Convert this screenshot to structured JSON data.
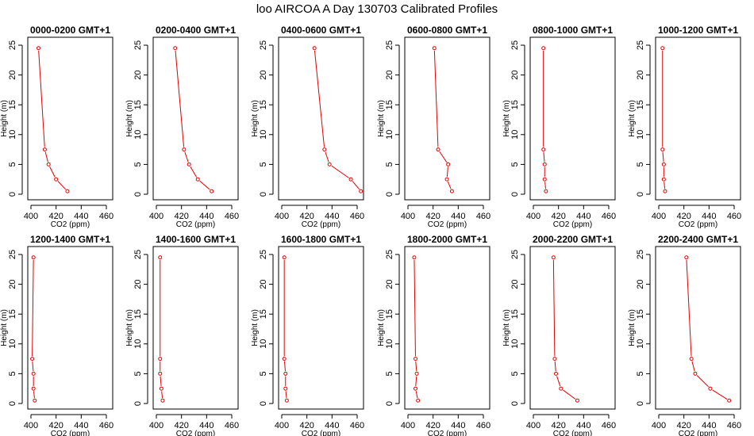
{
  "chart_data": {
    "type": "line",
    "title": "loo AIRCOA A  Day 130703  Calibrated Profiles",
    "xlabel": "CO2 (ppm)",
    "ylabel": "Height (m)",
    "xlim": [
      400,
      460
    ],
    "ylim": [
      0,
      25
    ],
    "xticks": [
      400,
      420,
      440,
      460
    ],
    "yticks": [
      0,
      5,
      10,
      15,
      20,
      25
    ],
    "series_color": "#e00000",
    "heights": [
      0.5,
      2.5,
      5,
      7.5,
      24.5
    ],
    "panels": [
      {
        "title": "0000-0200 GMT+1",
        "co2": [
          429,
          420,
          414,
          411,
          406
        ]
      },
      {
        "title": "0200-0400 GMT+1",
        "co2": [
          444,
          433,
          426,
          422,
          415
        ]
      },
      {
        "title": "0400-0600 GMT+1",
        "co2": [
          463,
          455,
          438,
          434,
          426
        ]
      },
      {
        "title": "0600-0800 GMT+1",
        "co2": [
          435,
          431,
          432,
          424,
          421
        ]
      },
      {
        "title": "0800-1000 GMT+1",
        "co2": [
          410,
          409,
          409,
          408,
          408
        ]
      },
      {
        "title": "1000-1200 GMT+1",
        "co2": [
          405,
          404,
          404,
          403,
          403
        ]
      },
      {
        "title": "1200-1400 GMT+1",
        "co2": [
          403,
          402,
          402,
          401,
          402
        ]
      },
      {
        "title": "1400-1600 GMT+1",
        "co2": [
          405,
          404,
          403,
          403,
          403
        ]
      },
      {
        "title": "1600-1800 GMT+1",
        "co2": [
          404,
          403,
          403,
          402,
          402
        ]
      },
      {
        "title": "1800-2000 GMT+1",
        "co2": [
          408,
          406,
          407,
          406,
          405
        ]
      },
      {
        "title": "2000-2200 GMT+1",
        "co2": [
          435,
          422,
          418,
          417,
          416
        ]
      },
      {
        "title": "2200-2400 GMT+1",
        "co2": [
          456,
          441,
          429,
          426,
          422
        ]
      }
    ]
  }
}
